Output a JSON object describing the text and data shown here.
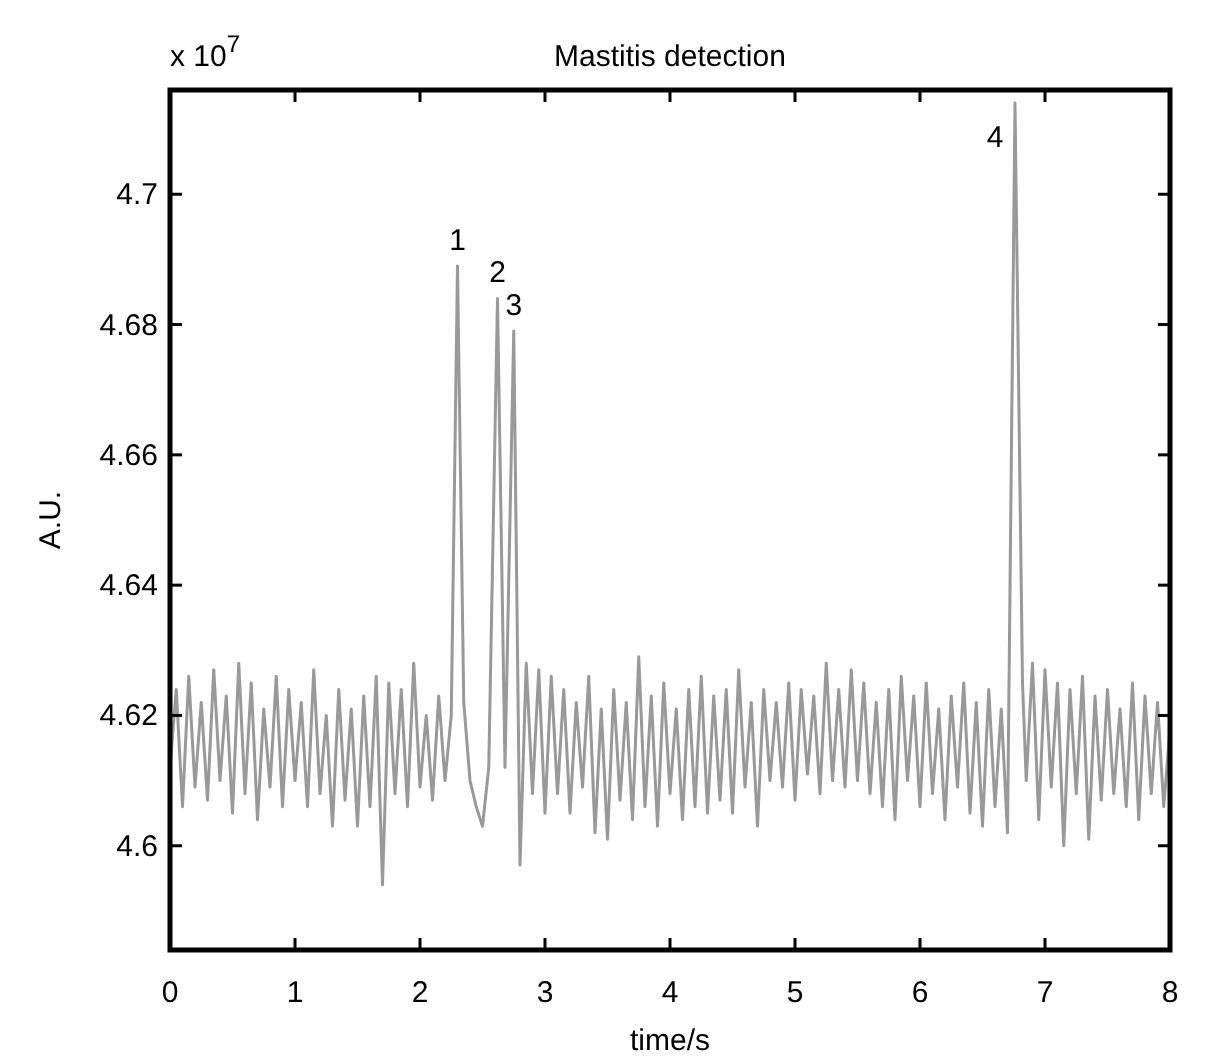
{
  "chart_data": {
    "type": "line",
    "title": "Mastitis detection",
    "xlabel": "time/s",
    "ylabel": "A.U.",
    "annotations": [
      "x 10$^{7}$",
      {
        "text": "1",
        "x": 2.3,
        "y": 4.689
      },
      {
        "text": "2",
        "x": 2.62,
        "y": 4.684
      },
      {
        "text": "3",
        "x": 2.75,
        "y": 4.679
      },
      {
        "text": "4",
        "x": 6.76,
        "y": 4.714
      }
    ],
    "xlim": [
      0,
      8
    ],
    "xticks": [
      0,
      1,
      2,
      3,
      4,
      5,
      6,
      7,
      8
    ],
    "ylim": [
      4.584,
      4.716
    ],
    "yticks": [
      4.6,
      4.62,
      4.64,
      4.66,
      4.68,
      4.7
    ],
    "grid": false,
    "marker": "none",
    "line_style": "solid",
    "series": [
      {
        "color": "#999999",
        "x": [
          0,
          0.05,
          0.1,
          0.15,
          0.2,
          0.25,
          0.3,
          0.35,
          0.4,
          0.45,
          0.5,
          0.55,
          0.6,
          0.65,
          0.7,
          0.75,
          0.8,
          0.85,
          0.9,
          0.95,
          1,
          1.05,
          1.1,
          1.15,
          1.2,
          1.25,
          1.3,
          1.35,
          1.4,
          1.45,
          1.5,
          1.55,
          1.6,
          1.65,
          1.7,
          1.75,
          1.8,
          1.85,
          1.9,
          1.95,
          2,
          2.05,
          2.1,
          2.15,
          2.2,
          2.25,
          2.3,
          2.35,
          2.4,
          2.45,
          2.5,
          2.55,
          2.62,
          2.68,
          2.75,
          2.8,
          2.85,
          2.9,
          2.95,
          3,
          3.05,
          3.1,
          3.15,
          3.2,
          3.25,
          3.3,
          3.35,
          3.4,
          3.45,
          3.5,
          3.55,
          3.6,
          3.65,
          3.7,
          3.75,
          3.8,
          3.85,
          3.9,
          3.95,
          4,
          4.05,
          4.1,
          4.15,
          4.2,
          4.25,
          4.3,
          4.35,
          4.4,
          4.45,
          4.5,
          4.55,
          4.6,
          4.65,
          4.7,
          4.75,
          4.8,
          4.85,
          4.9,
          4.95,
          5,
          5.05,
          5.1,
          5.15,
          5.2,
          5.25,
          5.3,
          5.35,
          5.4,
          5.45,
          5.5,
          5.55,
          5.6,
          5.65,
          5.7,
          5.75,
          5.8,
          5.85,
          5.9,
          5.95,
          6,
          6.05,
          6.1,
          6.15,
          6.2,
          6.25,
          6.3,
          6.35,
          6.4,
          6.45,
          6.5,
          6.55,
          6.6,
          6.65,
          6.7,
          6.76,
          6.82,
          6.85,
          6.9,
          6.95,
          7,
          7.05,
          7.1,
          7.15,
          7.2,
          7.25,
          7.3,
          7.35,
          7.4,
          7.45,
          7.5,
          7.55,
          7.6,
          7.65,
          7.7,
          7.75,
          7.8,
          7.85,
          7.9,
          7.95,
          8
        ],
        "values": [
          4.612,
          4.624,
          4.606,
          4.626,
          4.609,
          4.622,
          4.607,
          4.627,
          4.61,
          4.623,
          4.605,
          4.628,
          4.608,
          4.625,
          4.604,
          4.621,
          4.609,
          4.626,
          4.606,
          4.624,
          4.61,
          4.622,
          4.606,
          4.627,
          4.608,
          4.62,
          4.603,
          4.624,
          4.607,
          4.621,
          4.603,
          4.623,
          4.606,
          4.626,
          4.594,
          4.625,
          4.608,
          4.624,
          4.606,
          4.628,
          4.609,
          4.62,
          4.607,
          4.623,
          4.61,
          4.62,
          4.689,
          4.622,
          4.61,
          4.606,
          4.603,
          4.612,
          4.684,
          4.612,
          4.679,
          4.597,
          4.628,
          4.608,
          4.627,
          4.605,
          4.626,
          4.608,
          4.624,
          4.605,
          4.622,
          4.609,
          4.626,
          4.602,
          4.621,
          4.601,
          4.624,
          4.607,
          4.622,
          4.604,
          4.629,
          4.606,
          4.623,
          4.603,
          4.625,
          4.608,
          4.621,
          4.604,
          4.624,
          4.606,
          4.626,
          4.605,
          4.623,
          4.607,
          4.624,
          4.605,
          4.627,
          4.609,
          4.622,
          4.603,
          4.624,
          4.61,
          4.622,
          4.609,
          4.625,
          4.607,
          4.624,
          4.611,
          4.623,
          4.608,
          4.628,
          4.61,
          4.624,
          4.609,
          4.627,
          4.61,
          4.625,
          4.608,
          4.622,
          4.606,
          4.624,
          4.604,
          4.626,
          4.61,
          4.623,
          4.606,
          4.625,
          4.608,
          4.621,
          4.604,
          4.623,
          4.609,
          4.625,
          4.605,
          4.622,
          4.603,
          4.624,
          4.606,
          4.621,
          4.602,
          4.714,
          4.625,
          4.61,
          4.628,
          4.604,
          4.627,
          4.609,
          4.625,
          4.6,
          4.624,
          4.608,
          4.626,
          4.601,
          4.623,
          4.607,
          4.624,
          4.608,
          4.621,
          4.606,
          4.625,
          4.604,
          4.623,
          4.608,
          4.622,
          4.606,
          4.618
        ]
      }
    ]
  }
}
